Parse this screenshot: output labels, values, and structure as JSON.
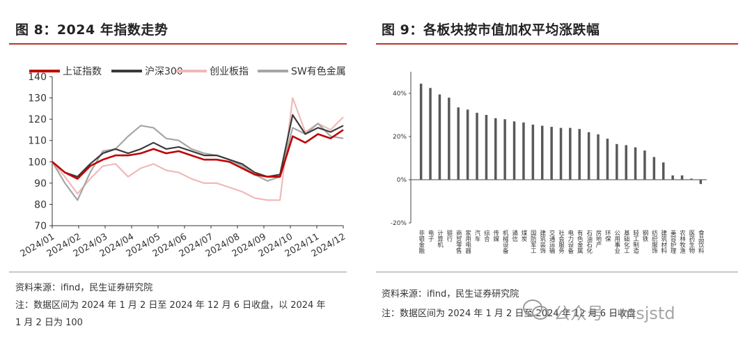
{
  "left": {
    "title": "图 8：2024 年指数走势",
    "source": "资料来源：ifind，民生证券研究院",
    "note_line1": "注：数据区间为 2024 年 1 月 2 日至 2024 年 12 月 6 日收盘，以 2024 年",
    "note_line2": "1 月 2 日为 100"
  },
  "right": {
    "title": "图 9：各板块按市值加权平均涨跌幅",
    "source": "资料来源：ifind，民生证券研究院",
    "note_line1": "注：数据区间为 2024 年 1 月 2 日至 2024 年 12 月 6 日收盘"
  },
  "watermark": "公众号 · msjstd",
  "colors": {
    "accent": "#c0302a",
    "bar": "#595959"
  },
  "chart_data": [
    {
      "type": "line",
      "title": "",
      "xlabel": "",
      "ylabel": "",
      "ylim": [
        70,
        140
      ],
      "yticks": [
        70,
        80,
        90,
        100,
        110,
        120,
        130,
        140
      ],
      "xticks": [
        "2024/01",
        "2024/02",
        "2024/03",
        "2024/04",
        "2024/05",
        "2024/06",
        "2024/07",
        "2024/08",
        "2024/09",
        "2024/10",
        "2024/11",
        "2024/12"
      ],
      "legend_position": "top",
      "grid": false,
      "x": [
        "2024/01",
        "2024/01b",
        "2024/02",
        "2024/02b",
        "2024/03",
        "2024/03b",
        "2024/04",
        "2024/04b",
        "2024/05",
        "2024/05b",
        "2024/06",
        "2024/06b",
        "2024/07",
        "2024/07b",
        "2024/08",
        "2024/08b",
        "2024/09",
        "2024/09b",
        "2024/09c",
        "2024/10",
        "2024/10b",
        "2024/11",
        "2024/11b",
        "2024/12"
      ],
      "series": [
        {
          "name": "上证指数",
          "color": "#c00000",
          "values": [
            100,
            95,
            92,
            98,
            101,
            103,
            103,
            104,
            106,
            104,
            105,
            103,
            101,
            101,
            100,
            97,
            94,
            93,
            93,
            112,
            109,
            113,
            111,
            115
          ]
        },
        {
          "name": "沪深300",
          "color": "#3a3a3a",
          "values": [
            100,
            95,
            93,
            99,
            104,
            106,
            104,
            106,
            109,
            106,
            107,
            105,
            103,
            103,
            101,
            99,
            95,
            93,
            94,
            122,
            113,
            116,
            114,
            117
          ]
        },
        {
          "name": "创业板指",
          "color": "#f0b9b9",
          "values": [
            100,
            93,
            85,
            92,
            98,
            99,
            93,
            97,
            99,
            96,
            95,
            92,
            90,
            90,
            88,
            86,
            83,
            82,
            82,
            130,
            114,
            118,
            115,
            121
          ]
        },
        {
          "name": "SW有色金属",
          "color": "#a6a6a6",
          "values": [
            100,
            90,
            82,
            95,
            105,
            106,
            112,
            117,
            116,
            111,
            110,
            106,
            104,
            103,
            101,
            98,
            94,
            91,
            93,
            116,
            113,
            118,
            112,
            111
          ]
        }
      ]
    },
    {
      "type": "bar",
      "title": "",
      "ylim": [
        -20,
        50
      ],
      "yticks": [
        "-20%",
        "0%",
        "20%",
        "40%"
      ],
      "categories": [
        "非银金融",
        "电子",
        "计算机",
        "银行",
        "商贸零售",
        "家用电器",
        "汽车",
        "综合",
        "传媒",
        "机械设备",
        "通信",
        "煤炭",
        "国防军工",
        "建筑装饰",
        "交通运输",
        "社会服务",
        "电力设备",
        "有色金属",
        "石油石化",
        "房地产",
        "环保",
        "公用事业",
        "基础化工",
        "轻工制造",
        "钢铁",
        "纺织服饰",
        "建筑材料",
        "美容护理",
        "农林牧渔",
        "医药生物",
        "食品饮料"
      ],
      "values": [
        44.5,
        42.5,
        39.5,
        38.0,
        33.5,
        32.5,
        31.0,
        30.0,
        28.5,
        28.0,
        27.0,
        26.5,
        25.5,
        25.0,
        24.5,
        24.0,
        24.0,
        23.5,
        22.0,
        21.0,
        19.0,
        16.5,
        16.0,
        15.0,
        13.5,
        10.5,
        8.0,
        2.0,
        2.0,
        0.5,
        -2.0
      ]
    }
  ]
}
